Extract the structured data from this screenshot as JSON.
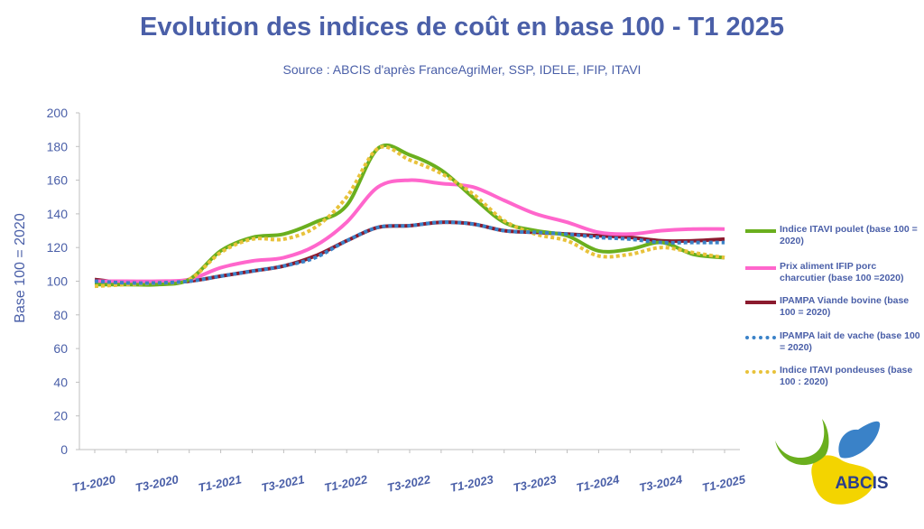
{
  "title": "Evolution des indices de coût en base 100 - T1 2025",
  "subtitle": "Source : ABCIS d'après FranceAgriMer, SSP, IDELE, IFIP, ITAVI",
  "logo_text": "ABCIS",
  "chart_data": {
    "type": "line",
    "ylabel": "Base 100 = 2020",
    "xlabel": "",
    "ylim": [
      0,
      200
    ],
    "yticks": [
      0,
      20,
      40,
      60,
      80,
      100,
      120,
      140,
      160,
      180,
      200
    ],
    "grid": false,
    "legend_position": "right",
    "x_labels": [
      "T1-2020",
      "T3-2020",
      "T1-2021",
      "T3-2021",
      "T1-2022",
      "T3-2022",
      "T1-2023",
      "T3-2023",
      "T1-2024",
      "T3-2024",
      "T1-2025"
    ],
    "x": [
      "T1-2020",
      "T2-2020",
      "T3-2020",
      "T4-2020",
      "T1-2021",
      "T2-2021",
      "T3-2021",
      "T4-2021",
      "T1-2022",
      "T2-2022",
      "T3-2022",
      "T4-2022",
      "T1-2023",
      "T2-2023",
      "T3-2023",
      "T4-2023",
      "T1-2024",
      "T2-2024",
      "T3-2024",
      "T4-2024",
      "T1-2025"
    ],
    "series": [
      {
        "name": "Indice ITAVI poulet (base 100 = 2020)",
        "color": "#6aaf1e",
        "style": "solid",
        "values": [
          98,
          98,
          98,
          101,
          118,
          126,
          128,
          135,
          145,
          179,
          175,
          166,
          150,
          135,
          130,
          127,
          118,
          119,
          123,
          116,
          114
        ]
      },
      {
        "name": "Prix aliment IFIP porc charcutier (base 100 =2020)",
        "color": "#ff66cc",
        "style": "solid",
        "values": [
          100,
          100,
          100,
          101,
          108,
          112,
          114,
          121,
          135,
          156,
          160,
          158,
          156,
          148,
          140,
          135,
          129,
          128,
          130,
          131,
          131
        ]
      },
      {
        "name": "IPAMPA Viande bovine (base 100 = 2020)",
        "color": "#8b1a2e",
        "style": "solid",
        "values": [
          101,
          99,
          99,
          100,
          103,
          106,
          109,
          115,
          124,
          132,
          133,
          135,
          134,
          130,
          129,
          128,
          127,
          126,
          124,
          124,
          125
        ]
      },
      {
        "name": "IPAMPA lait de vache (base 100 = 2020)",
        "color": "#3a82c8",
        "style": "dotted",
        "values": [
          100,
          99,
          99,
          100,
          103,
          106,
          109,
          114,
          124,
          132,
          133,
          135,
          134,
          130,
          129,
          128,
          126,
          125,
          123,
          123,
          123
        ]
      },
      {
        "name": "Indice ITAVI pondeuses (base 100 : 2020)",
        "color": "#e8c23a",
        "style": "dotted",
        "values": [
          97,
          98,
          99,
          101,
          117,
          125,
          125,
          132,
          150,
          179,
          172,
          164,
          152,
          136,
          128,
          124,
          115,
          116,
          120,
          117,
          114
        ]
      }
    ]
  }
}
